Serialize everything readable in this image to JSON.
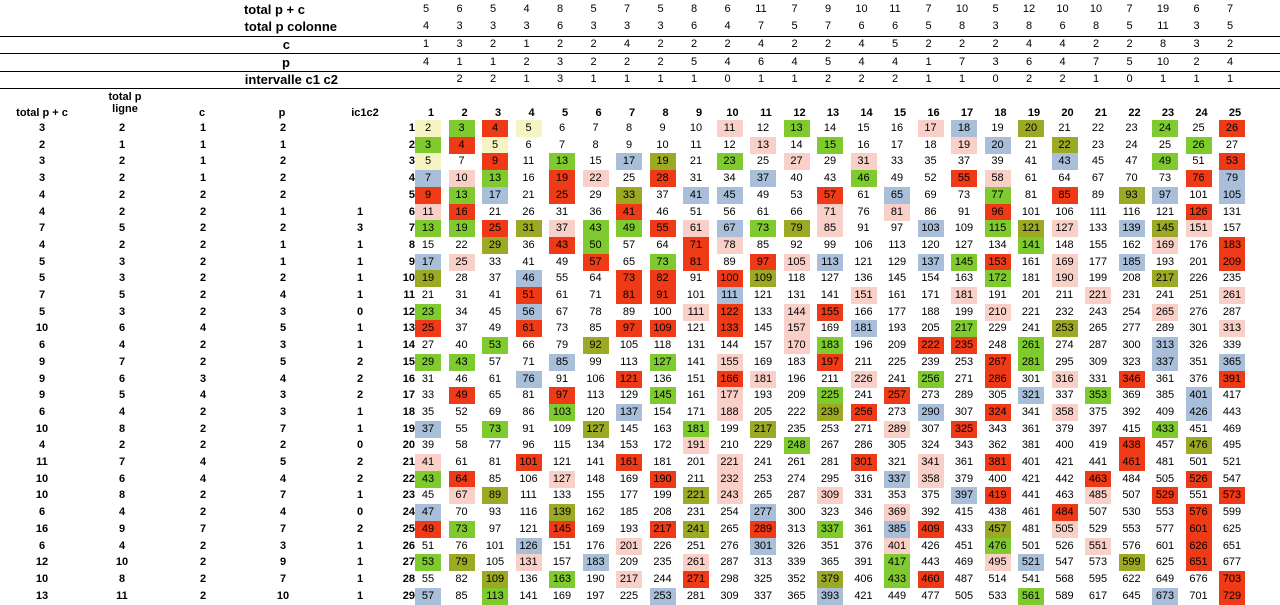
{
  "header_rows": [
    {
      "label": "total p + c",
      "values": [
        "5",
        "6",
        "5",
        "4",
        "8",
        "5",
        "7",
        "5",
        "8",
        "6",
        "11",
        "7",
        "9",
        "10",
        "11",
        "7",
        "10",
        "5",
        "12",
        "10",
        "10",
        "7",
        "19",
        "6",
        "7"
      ]
    },
    {
      "label": "total p colonne",
      "values": [
        "4",
        "3",
        "3",
        "3",
        "6",
        "3",
        "3",
        "3",
        "6",
        "4",
        "7",
        "5",
        "7",
        "6",
        "6",
        "5",
        "8",
        "3",
        "8",
        "6",
        "8",
        "5",
        "11",
        "3",
        "5"
      ]
    },
    {
      "label": "c",
      "values": [
        "1",
        "3",
        "2",
        "1",
        "2",
        "2",
        "4",
        "2",
        "2",
        "2",
        "4",
        "2",
        "2",
        "4",
        "5",
        "2",
        "2",
        "2",
        "4",
        "4",
        "2",
        "2",
        "8",
        "3",
        "2"
      ]
    },
    {
      "label": "p",
      "values": [
        "4",
        "1",
        "1",
        "2",
        "3",
        "2",
        "2",
        "2",
        "5",
        "4",
        "6",
        "4",
        "5",
        "4",
        "4",
        "1",
        "7",
        "3",
        "6",
        "4",
        "7",
        "5",
        "10",
        "2",
        "4"
      ]
    },
    {
      "label": "intervalle c1 c2",
      "values": [
        "",
        "2",
        "2",
        "1",
        "3",
        "1",
        "1",
        "1",
        "1",
        "0",
        "1",
        "1",
        "2",
        "2",
        "2",
        "1",
        "1",
        "0",
        "2",
        "2",
        "1",
        "0",
        "1",
        "1",
        "1"
      ]
    }
  ],
  "left_headers": {
    "total_pc": "total p + c",
    "total_p_ligne": "total p\nligne",
    "c": "c",
    "p": "p",
    "ic1c2": "ic1c2"
  },
  "col_numbers": [
    "1",
    "2",
    "3",
    "4",
    "5",
    "6",
    "7",
    "8",
    "9",
    "10",
    "11",
    "12",
    "13",
    "14",
    "15",
    "16",
    "17",
    "18",
    "19",
    "20",
    "21",
    "22",
    "23",
    "24",
    "25"
  ],
  "left_rows": [
    [
      "3",
      "2",
      "1",
      "2",
      ""
    ],
    [
      "2",
      "1",
      "1",
      "1",
      ""
    ],
    [
      "3",
      "2",
      "1",
      "2",
      ""
    ],
    [
      "3",
      "2",
      "1",
      "2",
      ""
    ],
    [
      "4",
      "2",
      "2",
      "2",
      ""
    ],
    [
      "4",
      "2",
      "2",
      "1",
      "1"
    ],
    [
      "7",
      "5",
      "2",
      "2",
      "3"
    ],
    [
      "4",
      "2",
      "2",
      "1",
      "1"
    ],
    [
      "5",
      "3",
      "2",
      "1",
      "1"
    ],
    [
      "5",
      "3",
      "2",
      "2",
      "1"
    ],
    [
      "7",
      "5",
      "2",
      "4",
      "1"
    ],
    [
      "5",
      "3",
      "2",
      "3",
      "0"
    ],
    [
      "10",
      "6",
      "4",
      "5",
      "1"
    ],
    [
      "6",
      "4",
      "2",
      "3",
      "1"
    ],
    [
      "9",
      "7",
      "2",
      "5",
      "2"
    ],
    [
      "9",
      "6",
      "3",
      "4",
      "2"
    ],
    [
      "9",
      "5",
      "4",
      "3",
      "2"
    ],
    [
      "6",
      "4",
      "2",
      "3",
      "1"
    ],
    [
      "10",
      "8",
      "2",
      "7",
      "1"
    ],
    [
      "4",
      "2",
      "2",
      "2",
      "0"
    ],
    [
      "11",
      "7",
      "4",
      "5",
      "2"
    ],
    [
      "10",
      "6",
      "4",
      "4",
      "2"
    ],
    [
      "10",
      "8",
      "2",
      "7",
      "1"
    ],
    [
      "6",
      "4",
      "2",
      "4",
      "0"
    ],
    [
      "16",
      "9",
      "7",
      "7",
      "2"
    ],
    [
      "6",
      "4",
      "2",
      "3",
      "1"
    ],
    [
      "12",
      "10",
      "2",
      "9",
      "1"
    ],
    [
      "10",
      "8",
      "2",
      "7",
      "1"
    ],
    [
      "13",
      "11",
      "2",
      "10",
      "1"
    ]
  ],
  "grid": [
    [
      "2",
      "3",
      "4",
      "5",
      "6",
      "7",
      "8",
      "9",
      "10",
      "11",
      "12",
      "13",
      "14",
      "15",
      "16",
      "17",
      "18",
      "19",
      "20",
      "21",
      "22",
      "23",
      "24",
      "25",
      "26"
    ],
    [
      "3",
      "4",
      "5",
      "6",
      "7",
      "8",
      "9",
      "10",
      "11",
      "12",
      "13",
      "14",
      "15",
      "16",
      "17",
      "18",
      "19",
      "20",
      "21",
      "22",
      "23",
      "24",
      "25",
      "26",
      "27"
    ],
    [
      "5",
      "7",
      "9",
      "11",
      "13",
      "15",
      "17",
      "19",
      "21",
      "23",
      "25",
      "27",
      "29",
      "31",
      "33",
      "35",
      "37",
      "39",
      "41",
      "43",
      "45",
      "47",
      "49",
      "51",
      "53"
    ],
    [
      "7",
      "10",
      "13",
      "16",
      "19",
      "22",
      "25",
      "28",
      "31",
      "34",
      "37",
      "40",
      "43",
      "46",
      "49",
      "52",
      "55",
      "58",
      "61",
      "64",
      "67",
      "70",
      "73",
      "76",
      "79"
    ],
    [
      "9",
      "13",
      "17",
      "21",
      "25",
      "29",
      "33",
      "37",
      "41",
      "45",
      "49",
      "53",
      "57",
      "61",
      "65",
      "69",
      "73",
      "77",
      "81",
      "85",
      "89",
      "93",
      "97",
      "101",
      "105"
    ],
    [
      "11",
      "16",
      "21",
      "26",
      "31",
      "36",
      "41",
      "46",
      "51",
      "56",
      "61",
      "66",
      "71",
      "76",
      "81",
      "86",
      "91",
      "96",
      "101",
      "106",
      "111",
      "116",
      "121",
      "126",
      "131"
    ],
    [
      "13",
      "19",
      "25",
      "31",
      "37",
      "43",
      "49",
      "55",
      "61",
      "67",
      "73",
      "79",
      "85",
      "91",
      "97",
      "103",
      "109",
      "115",
      "121",
      "127",
      "133",
      "139",
      "145",
      "151",
      "157"
    ],
    [
      "15",
      "22",
      "29",
      "36",
      "43",
      "50",
      "57",
      "64",
      "71",
      "78",
      "85",
      "92",
      "99",
      "106",
      "113",
      "120",
      "127",
      "134",
      "141",
      "148",
      "155",
      "162",
      "169",
      "176",
      "183"
    ],
    [
      "17",
      "25",
      "33",
      "41",
      "49",
      "57",
      "65",
      "73",
      "81",
      "89",
      "97",
      "105",
      "113",
      "121",
      "129",
      "137",
      "145",
      "153",
      "161",
      "169",
      "177",
      "185",
      "193",
      "201",
      "209"
    ],
    [
      "19",
      "28",
      "37",
      "46",
      "55",
      "64",
      "73",
      "82",
      "91",
      "100",
      "109",
      "118",
      "127",
      "136",
      "145",
      "154",
      "163",
      "172",
      "181",
      "190",
      "199",
      "208",
      "217",
      "226",
      "235"
    ],
    [
      "21",
      "31",
      "41",
      "51",
      "61",
      "71",
      "81",
      "91",
      "101",
      "111",
      "121",
      "131",
      "141",
      "151",
      "161",
      "171",
      "181",
      "191",
      "201",
      "211",
      "221",
      "231",
      "241",
      "251",
      "261"
    ],
    [
      "23",
      "34",
      "45",
      "56",
      "67",
      "78",
      "89",
      "100",
      "111",
      "122",
      "133",
      "144",
      "155",
      "166",
      "177",
      "188",
      "199",
      "210",
      "221",
      "232",
      "243",
      "254",
      "265",
      "276",
      "287"
    ],
    [
      "25",
      "37",
      "49",
      "61",
      "73",
      "85",
      "97",
      "109",
      "121",
      "133",
      "145",
      "157",
      "169",
      "181",
      "193",
      "205",
      "217",
      "229",
      "241",
      "253",
      "265",
      "277",
      "289",
      "301",
      "313"
    ],
    [
      "27",
      "40",
      "53",
      "66",
      "79",
      "92",
      "105",
      "118",
      "131",
      "144",
      "157",
      "170",
      "183",
      "196",
      "209",
      "222",
      "235",
      "248",
      "261",
      "274",
      "287",
      "300",
      "313",
      "326",
      "339"
    ],
    [
      "29",
      "43",
      "57",
      "71",
      "85",
      "99",
      "113",
      "127",
      "141",
      "155",
      "169",
      "183",
      "197",
      "211",
      "225",
      "239",
      "253",
      "267",
      "281",
      "295",
      "309",
      "323",
      "337",
      "351",
      "365"
    ],
    [
      "31",
      "46",
      "61",
      "76",
      "91",
      "106",
      "121",
      "136",
      "151",
      "166",
      "181",
      "196",
      "211",
      "226",
      "241",
      "256",
      "271",
      "286",
      "301",
      "316",
      "331",
      "346",
      "361",
      "376",
      "391"
    ],
    [
      "33",
      "49",
      "65",
      "81",
      "97",
      "113",
      "129",
      "145",
      "161",
      "177",
      "193",
      "209",
      "225",
      "241",
      "257",
      "273",
      "289",
      "305",
      "321",
      "337",
      "353",
      "369",
      "385",
      "401",
      "417"
    ],
    [
      "35",
      "52",
      "69",
      "86",
      "103",
      "120",
      "137",
      "154",
      "171",
      "188",
      "205",
      "222",
      "239",
      "256",
      "273",
      "290",
      "307",
      "324",
      "341",
      "358",
      "375",
      "392",
      "409",
      "426",
      "443"
    ],
    [
      "37",
      "55",
      "73",
      "91",
      "109",
      "127",
      "145",
      "163",
      "181",
      "199",
      "217",
      "235",
      "253",
      "271",
      "289",
      "307",
      "325",
      "343",
      "361",
      "379",
      "397",
      "415",
      "433",
      "451",
      "469"
    ],
    [
      "39",
      "58",
      "77",
      "96",
      "115",
      "134",
      "153",
      "172",
      "191",
      "210",
      "229",
      "248",
      "267",
      "286",
      "305",
      "324",
      "343",
      "362",
      "381",
      "400",
      "419",
      "438",
      "457",
      "476",
      "495"
    ],
    [
      "41",
      "61",
      "81",
      "101",
      "121",
      "141",
      "161",
      "181",
      "201",
      "221",
      "241",
      "261",
      "281",
      "301",
      "321",
      "341",
      "361",
      "381",
      "401",
      "421",
      "441",
      "461",
      "481",
      "501",
      "521"
    ],
    [
      "43",
      "64",
      "85",
      "106",
      "127",
      "148",
      "169",
      "190",
      "211",
      "232",
      "253",
      "274",
      "295",
      "316",
      "337",
      "358",
      "379",
      "400",
      "421",
      "442",
      "463",
      "484",
      "505",
      "526",
      "547"
    ],
    [
      "45",
      "67",
      "89",
      "111",
      "133",
      "155",
      "177",
      "199",
      "221",
      "243",
      "265",
      "287",
      "309",
      "331",
      "353",
      "375",
      "397",
      "419",
      "441",
      "463",
      "485",
      "507",
      "529",
      "551",
      "573"
    ],
    [
      "47",
      "70",
      "93",
      "116",
      "139",
      "162",
      "185",
      "208",
      "231",
      "254",
      "277",
      "300",
      "323",
      "346",
      "369",
      "392",
      "415",
      "438",
      "461",
      "484",
      "507",
      "530",
      "553",
      "576",
      "599"
    ],
    [
      "49",
      "73",
      "97",
      "121",
      "145",
      "169",
      "193",
      "217",
      "241",
      "265",
      "289",
      "313",
      "337",
      "361",
      "385",
      "409",
      "433",
      "457",
      "481",
      "505",
      "529",
      "553",
      "577",
      "601",
      "625"
    ],
    [
      "51",
      "76",
      "101",
      "126",
      "151",
      "176",
      "201",
      "226",
      "251",
      "276",
      "301",
      "326",
      "351",
      "376",
      "401",
      "426",
      "451",
      "476",
      "501",
      "526",
      "551",
      "576",
      "601",
      "626",
      "651"
    ],
    [
      "53",
      "79",
      "105",
      "131",
      "157",
      "183",
      "209",
      "235",
      "261",
      "287",
      "313",
      "339",
      "365",
      "391",
      "417",
      "443",
      "469",
      "495",
      "521",
      "547",
      "573",
      "599",
      "625",
      "651",
      "677"
    ],
    [
      "55",
      "82",
      "109",
      "136",
      "163",
      "190",
      "217",
      "244",
      "271",
      "298",
      "325",
      "352",
      "379",
      "406",
      "433",
      "460",
      "487",
      "514",
      "541",
      "568",
      "595",
      "622",
      "649",
      "676",
      "703"
    ],
    [
      "57",
      "85",
      "113",
      "141",
      "169",
      "197",
      "225",
      "253",
      "281",
      "309",
      "337",
      "365",
      "393",
      "421",
      "449",
      "477",
      "505",
      "533",
      "561",
      "589",
      "617",
      "645",
      "673",
      "701",
      "729"
    ]
  ],
  "colors": {
    "R": "#ee3a16",
    "L": "#f9d0c8",
    "B": "#a9bfd9",
    "G": "#7fcb2f",
    "O": "#9ca924",
    "Y": "#f7f4c4"
  },
  "grid_colors": [
    "YGRY.....L.G...LB.O...G.R.",
    "GRY.......L.G...LB.O...G.R.",
    "Y.R.G.BO.G.L.L.....B..G.R..",
    "BLG.RL.R..B..G..RL.....RB.O",
    "RGB.R.O.BB..R.B..G.R.OB.BL.",
    "LR....R.....L.L..R.....R.L",
    "GGROLGGRLBGOL..B.GOL.BOL.B",
    "..O.RG..RL........G...L.R..",
    "BL...R.GR.RLB..BGR.L.B..R..",
    "O..B..RR.RO......G.L..O....",
    "...R..RR.B...L..L...L...L..",
    "G..B....LR.LR....L....L....",
    "R..R..RR.R.L.B..G..O....L..",
    "..G..O.....LG..RR.G...B...",
    "GG..B..G.L..R....RG...B.B..",
    "...B..R..RL..L.G.R.L.R..R..",
    ".R..R..G.L..G.R...B.G..B...",
    "....G.B..L..OR.B.R.L...B..",
    "B.G..O..G.O...L.R.....G....",
    "........L..G.........R.O...",
    "L..R..R..L...R.L.R...R...L..",
    "GR..L..R.L....BL....R..R..",
    ".LO.....OL..L...BR..L.R.R..",
    "B...O.....B...L....R...R..",
    "RG..R..RO.R.G.BR.O.L...R.L.",
    "...B..L...B...L..G..L..R.L.",
    "GO.L.B..L.....G..LB..O.R.B.",
    "..O.G.L.R...O.GR........R..",
    "B.G....B....B.....G...B.R.OR"
  ]
}
